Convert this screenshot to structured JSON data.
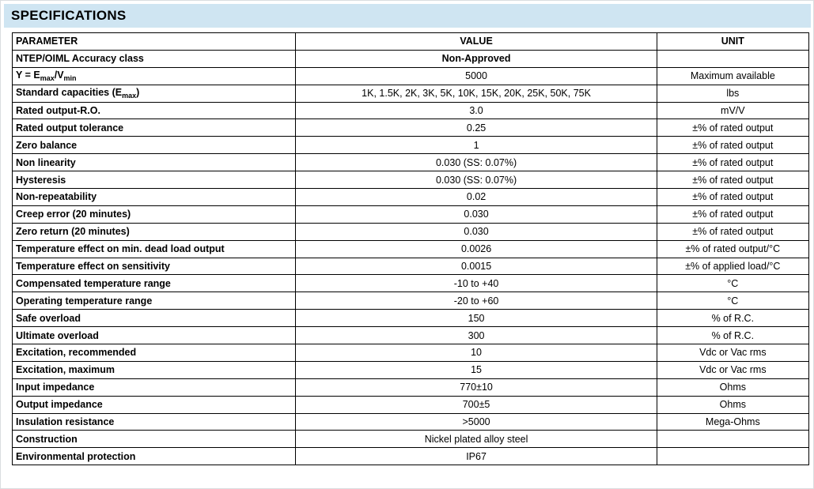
{
  "title": "SPECIFICATIONS",
  "colors": {
    "title_bar_bg": "#cfe5f2",
    "table_border": "#000000",
    "text": "#000000"
  },
  "table": {
    "headers": [
      "PARAMETER",
      "VALUE",
      "UNIT"
    ],
    "rows": [
      {
        "parameter": "NTEP/OIML Accuracy class",
        "value": "Non-Approved",
        "unit": "",
        "value_bold": true
      },
      {
        "parameter": "Y = E{max}/V{min}",
        "value": "5000",
        "unit": "Maximum available"
      },
      {
        "parameter": "Standard capacities (E{max})",
        "value": "1K, 1.5K, 2K, 3K, 5K, 10K, 15K, 20K, 25K, 50K, 75K",
        "unit": "lbs"
      },
      {
        "parameter": "Rated output-R.O.",
        "value": "3.0",
        "unit": "mV/V"
      },
      {
        "parameter": "Rated output tolerance",
        "value": "0.25",
        "unit": "±% of rated output"
      },
      {
        "parameter": "Zero balance",
        "value": "1",
        "unit": "±% of rated output"
      },
      {
        "parameter": "Non linearity",
        "value": "0.030 (SS: 0.07%)",
        "unit": "±% of rated output"
      },
      {
        "parameter": "Hysteresis",
        "value": "0.030 (SS: 0.07%)",
        "unit": "±% of rated output"
      },
      {
        "parameter": "Non-repeatability",
        "value": "0.02",
        "unit": "±% of rated output"
      },
      {
        "parameter": "Creep error (20 minutes)",
        "value": "0.030",
        "unit": "±% of rated output"
      },
      {
        "parameter": "Zero return (20 minutes)",
        "value": "0.030",
        "unit": "±% of rated output"
      },
      {
        "parameter": "Temperature effect on min. dead load output",
        "value": "0.0026",
        "unit": "±% of rated output/°C"
      },
      {
        "parameter": "Temperature effect on sensitivity",
        "value": "0.0015",
        "unit": "±% of applied load/°C"
      },
      {
        "parameter": "Compensated temperature range",
        "value": "-10 to +40",
        "unit": "°C"
      },
      {
        "parameter": "Operating temperature range",
        "value": "-20 to +60",
        "unit": "°C"
      },
      {
        "parameter": "Safe overload",
        "value": "150",
        "unit": "% of R.C."
      },
      {
        "parameter": "Ultimate overload",
        "value": "300",
        "unit": "% of R.C."
      },
      {
        "parameter": "Excitation, recommended",
        "value": "10",
        "unit": "Vdc or Vac rms"
      },
      {
        "parameter": "Excitation, maximum",
        "value": "15",
        "unit": "Vdc or Vac rms"
      },
      {
        "parameter": "Input impedance",
        "value": "770±10",
        "unit": "Ohms"
      },
      {
        "parameter": "Output impedance",
        "value": "700±5",
        "unit": "Ohms"
      },
      {
        "parameter": "Insulation resistance",
        "value": ">5000",
        "unit": "Mega-Ohms"
      },
      {
        "parameter": "Construction",
        "value": "Nickel plated alloy steel",
        "unit": ""
      },
      {
        "parameter": "Environmental protection",
        "value": "IP67",
        "unit": ""
      }
    ]
  }
}
